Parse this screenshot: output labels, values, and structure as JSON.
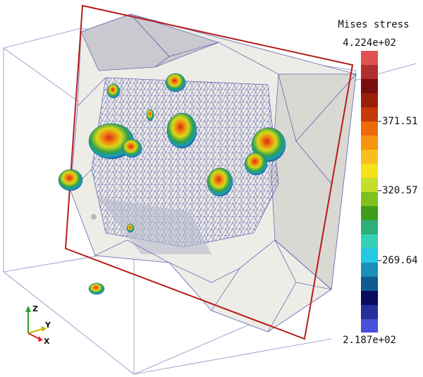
{
  "legend": {
    "title": "Mises stress",
    "labels": [
      "4.224e+02",
      "371.51",
      "320.57",
      "269.64",
      "2.187e+02"
    ]
  },
  "axes": {
    "z": "Z",
    "y": "Y",
    "x": "X"
  }
}
